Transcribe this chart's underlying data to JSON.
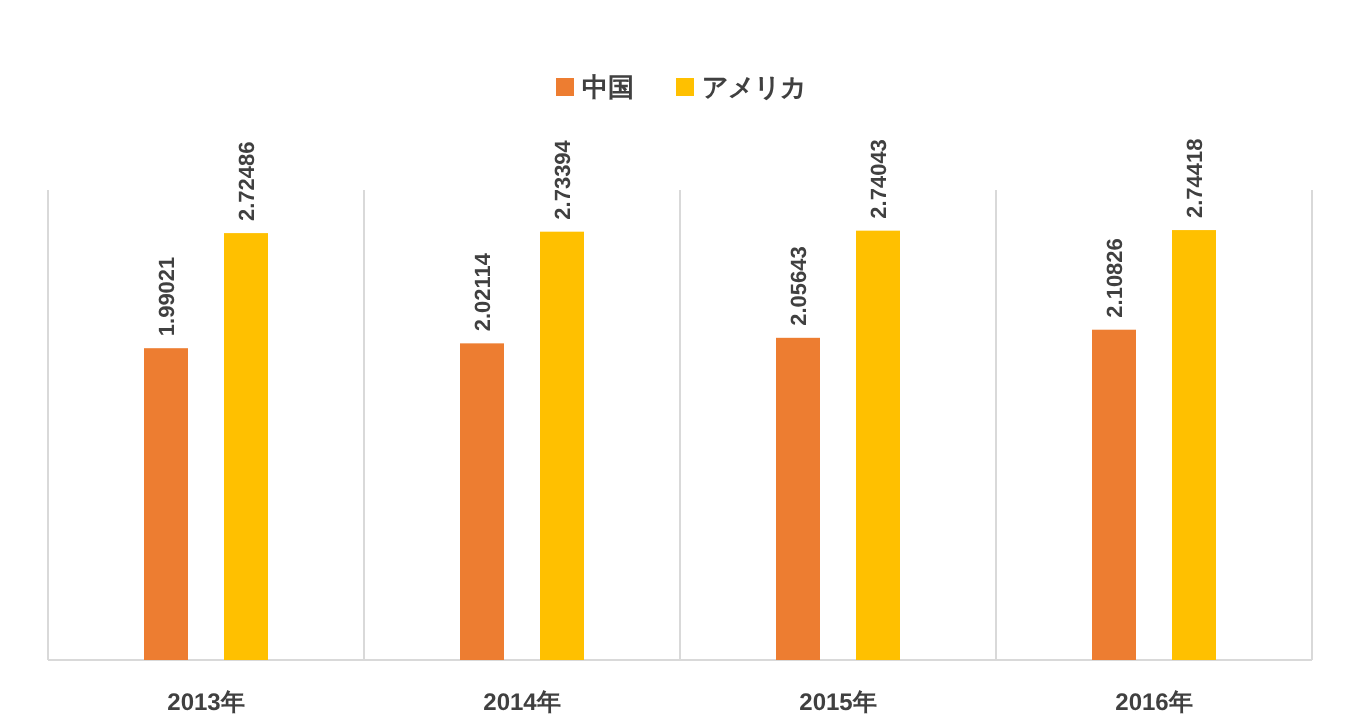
{
  "chart_data": {
    "type": "bar",
    "categories": [
      "2013年",
      "2014年",
      "2015年",
      "2016年"
    ],
    "series": [
      {
        "name": "中国",
        "color": "#ed7d31",
        "values": [
          1.99021,
          2.02114,
          2.05643,
          2.10826
        ]
      },
      {
        "name": "アメリカ",
        "color": "#ffc000",
        "values": [
          2.72486,
          2.73394,
          2.74043,
          2.74418
        ]
      }
    ],
    "ylim": [
      0,
      3
    ],
    "tick_labels": "x",
    "data_labels": true,
    "grid": "x",
    "legend": "top"
  }
}
